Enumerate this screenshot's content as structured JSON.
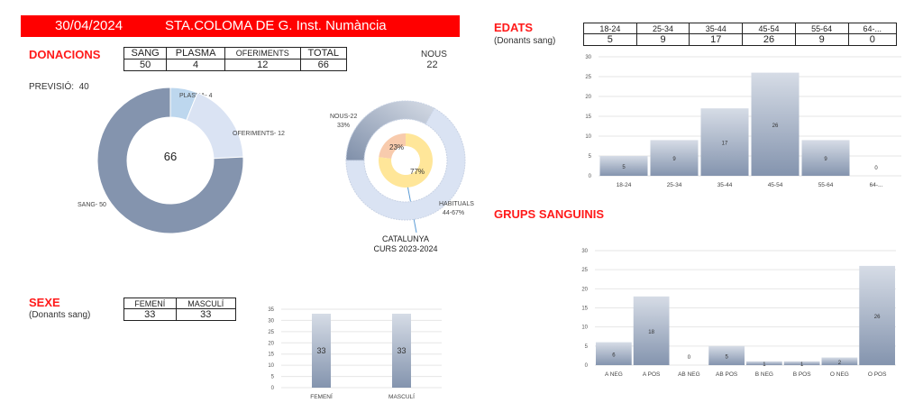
{
  "header": {
    "date": "30/04/2024",
    "title": "STA.COLOMA DE G. Inst. Numància"
  },
  "donacions": {
    "title": "DONACIONS",
    "cols": [
      "SANG",
      "PLASMA",
      "OFERIMENTS",
      "TOTAL"
    ],
    "vals": [
      "50",
      "4",
      "12",
      "66"
    ],
    "nous_label": "NOUS",
    "nous_value": "22",
    "previsio_label": "PREVISIÓ:",
    "previsio_value": "40"
  },
  "edats": {
    "title": "EDATS",
    "subtitle": "(Donants sang)",
    "cols": [
      "18-24",
      "25-34",
      "35-44",
      "45-54",
      "55-64",
      "64-..."
    ],
    "vals": [
      "5",
      "9",
      "17",
      "26",
      "9",
      "0"
    ]
  },
  "sexe": {
    "title": "SEXE",
    "subtitle": "(Donants sang)",
    "cols": [
      "FEMENÍ",
      "MASCULÍ"
    ],
    "vals": [
      "33",
      "33"
    ]
  },
  "grups": {
    "title": "GRUPS SANGUINIS"
  },
  "catalunya": {
    "line1": "CATALUNYA",
    "line2": "CURS 2023-2024"
  },
  "colors": {
    "red": "#ff0000",
    "dark": "#8494ae",
    "light": "#d6dce6",
    "plasma": "#bdd7ee",
    "oferiments": "#dae3f3",
    "peach": "#f8cbad",
    "yellow": "#ffe699"
  },
  "chart_data": [
    {
      "type": "pie",
      "name": "donacions",
      "center_label": "66",
      "slices": [
        {
          "label": "PLASMA- 4",
          "value": 4
        },
        {
          "label": "OFERIMENTS- 12",
          "value": 12
        },
        {
          "label": "SANG- 50",
          "value": 50
        }
      ]
    },
    {
      "type": "pie",
      "name": "nous-habituals",
      "outer": [
        {
          "label": "NOUS-22",
          "sub": "33%",
          "value": 33
        },
        {
          "label": "HABITUALS",
          "sub": "44-67%",
          "value": 67
        }
      ],
      "inner": [
        {
          "label": "23%",
          "value": 23
        },
        {
          "label": "77%",
          "value": 77
        }
      ]
    },
    {
      "type": "bar",
      "name": "edats",
      "categories": [
        "18-24",
        "25-34",
        "35-44",
        "45-54",
        "55-64",
        "64-..."
      ],
      "values": [
        5,
        9,
        17,
        26,
        9,
        0
      ],
      "ylim": [
        0,
        30
      ],
      "yticks": [
        0,
        5,
        10,
        15,
        20,
        25,
        30
      ]
    },
    {
      "type": "bar",
      "name": "sexe",
      "categories": [
        "FEMENÍ",
        "MASCULÍ"
      ],
      "values": [
        33,
        33
      ],
      "ylim": [
        0,
        35
      ],
      "yticks": [
        0,
        5,
        10,
        15,
        20,
        25,
        30,
        35
      ]
    },
    {
      "type": "bar",
      "name": "grups",
      "categories": [
        "A NEG",
        "A POS",
        "AB NEG",
        "AB POS",
        "B NEG",
        "B POS",
        "O NEG",
        "O POS"
      ],
      "values": [
        6,
        18,
        0,
        5,
        1,
        1,
        2,
        26
      ],
      "ylim": [
        0,
        30
      ],
      "yticks": [
        0,
        5,
        10,
        15,
        20,
        25,
        30
      ]
    }
  ]
}
